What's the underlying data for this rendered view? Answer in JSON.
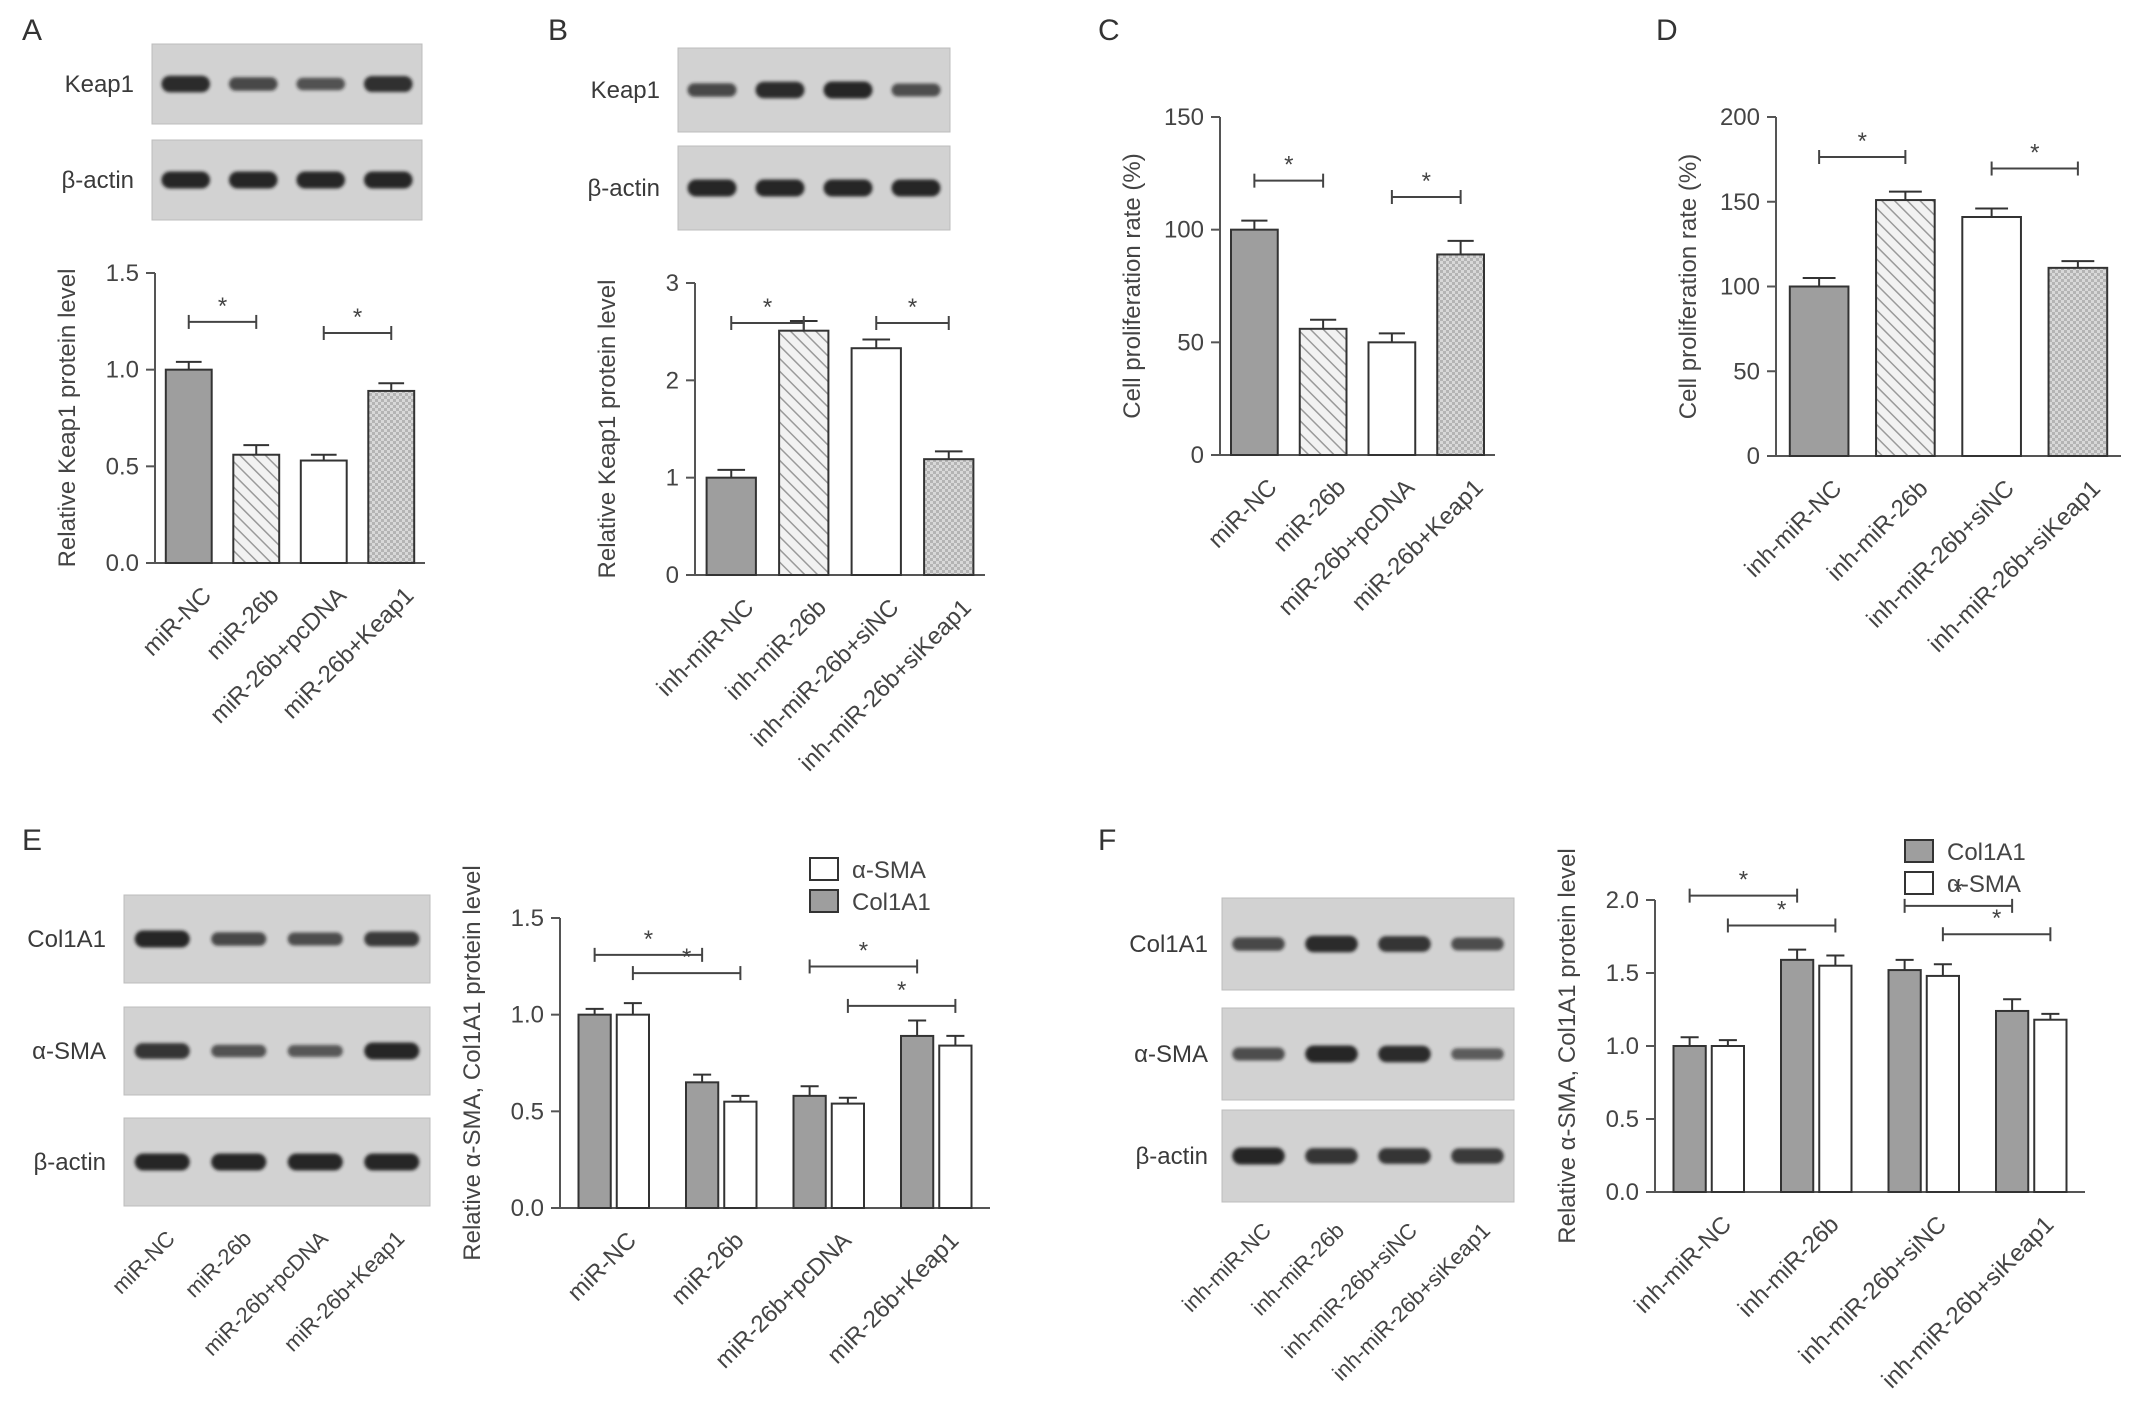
{
  "figure": {
    "panels": [
      {
        "letter": "A",
        "blot_rows": [
          "Keap1",
          "β-actin"
        ],
        "blot_lanes": 4,
        "intensities": [
          [
            0.95,
            0.6,
            0.5,
            0.9
          ],
          [
            1.0,
            1.0,
            1.0,
            1.0
          ]
        ]
      },
      {
        "letter": "B",
        "blot_rows": [
          "Keap1",
          "β-actin"
        ],
        "blot_lanes": 4,
        "intensities": [
          [
            0.6,
            0.95,
            1.0,
            0.55
          ],
          [
            1.0,
            1.0,
            1.0,
            1.0
          ]
        ]
      },
      {
        "letter": "C"
      },
      {
        "letter": "D"
      },
      {
        "letter": "E",
        "blot_rows": [
          "Col1A1",
          "α-SMA",
          "β-actin"
        ],
        "blot_lanes": 4,
        "blot_lane_labels": [
          "miR-NC",
          "miR-26b",
          "miR-26b+pcDNA",
          "miR-26b+Keap1"
        ],
        "intensities": [
          [
            1.0,
            0.6,
            0.55,
            0.75
          ],
          [
            0.85,
            0.5,
            0.45,
            1.0
          ],
          [
            1.0,
            1.0,
            1.0,
            1.0
          ]
        ]
      },
      {
        "letter": "F",
        "blot_rows": [
          "Col1A1",
          "α-SMA",
          "β-actin"
        ],
        "blot_lanes": 4,
        "blot_lane_labels": [
          "inh-miR-NC",
          "inh-miR-26b",
          "inh-miR-26b+siNC",
          "inh-miR-26b+siKeap1"
        ],
        "intensities": [
          [
            0.6,
            0.95,
            0.85,
            0.55
          ],
          [
            0.55,
            1.0,
            0.95,
            0.4
          ],
          [
            1.0,
            0.85,
            0.85,
            0.8
          ]
        ]
      }
    ],
    "significance_mark": "*"
  },
  "chart_data": [
    {
      "panel": "A",
      "type": "bar",
      "categories": [
        "miR-NC",
        "miR-26b",
        "miR-26b+pcDNA",
        "miR-26b+Keap1"
      ],
      "series": [
        {
          "values": [
            1.0,
            0.56,
            0.53,
            0.89
          ],
          "errors": [
            0.04,
            0.05,
            0.03,
            0.04
          ]
        }
      ],
      "patterns": [
        "solid",
        "hatch",
        "empty",
        "checker"
      ],
      "ylabel": "Relative Keap1 protein level",
      "ylim": [
        0,
        1.5
      ],
      "yticks": [
        "0.0",
        "0.5",
        "1.0",
        "1.5"
      ],
      "significance": [
        [
          0,
          1
        ],
        [
          2,
          3
        ]
      ]
    },
    {
      "panel": "B",
      "type": "bar",
      "categories": [
        "inh-miR-NC",
        "inh-miR-26b",
        "inh-miR-26b+siNC",
        "inh-miR-26b+siKeap1"
      ],
      "series": [
        {
          "values": [
            1.0,
            2.51,
            2.33,
            1.19
          ],
          "errors": [
            0.08,
            0.1,
            0.09,
            0.08
          ]
        }
      ],
      "patterns": [
        "solid",
        "hatch",
        "empty",
        "checker"
      ],
      "ylabel": "Relative Keap1 protein level",
      "ylim": [
        0,
        3
      ],
      "yticks": [
        "0",
        "1",
        "2",
        "3"
      ],
      "significance": [
        [
          0,
          1
        ],
        [
          2,
          3
        ]
      ]
    },
    {
      "panel": "C",
      "type": "bar",
      "categories": [
        "miR-NC",
        "miR-26b",
        "miR-26b+pcDNA",
        "miR-26b+Keap1"
      ],
      "series": [
        {
          "values": [
            100,
            56,
            50,
            89
          ],
          "errors": [
            4,
            4,
            4,
            6
          ]
        }
      ],
      "patterns": [
        "solid",
        "hatch",
        "empty",
        "checker"
      ],
      "ylabel": "Cell proliferation rate (%)",
      "ylim": [
        0,
        150
      ],
      "yticks": [
        "0",
        "50",
        "100",
        "150"
      ],
      "significance": [
        [
          0,
          1
        ],
        [
          2,
          3
        ]
      ]
    },
    {
      "panel": "D",
      "type": "bar",
      "categories": [
        "inh-miR-NC",
        "inh-miR-26b",
        "inh-miR-26b+siNC",
        "inh-miR-26b+siKeap1"
      ],
      "series": [
        {
          "values": [
            100,
            151,
            141,
            111
          ],
          "errors": [
            5,
            5,
            5,
            4
          ]
        }
      ],
      "patterns": [
        "solid",
        "hatch",
        "empty",
        "checker"
      ],
      "ylabel": "Cell proliferation rate (%)",
      "ylim": [
        0,
        200
      ],
      "yticks": [
        "0",
        "50",
        "100",
        "150",
        "200"
      ],
      "significance": [
        [
          0,
          1
        ],
        [
          2,
          3
        ]
      ]
    },
    {
      "panel": "E",
      "type": "bar",
      "categories": [
        "miR-NC",
        "miR-26b",
        "miR-26b+pcDNA",
        "miR-26b+Keap1"
      ],
      "series": [
        {
          "name": "Col1A1",
          "values": [
            1.0,
            0.65,
            0.58,
            0.89
          ],
          "errors": [
            0.03,
            0.04,
            0.05,
            0.08
          ],
          "fill": "gray"
        },
        {
          "name": "α-SMA",
          "values": [
            1.0,
            0.55,
            0.54,
            0.84
          ],
          "errors": [
            0.06,
            0.03,
            0.03,
            0.05
          ],
          "fill": "white"
        }
      ],
      "legend": [
        "α-SMA",
        "Col1A1"
      ],
      "legend_position": "top-right",
      "ylabel": "Relative α-SMA, Col1A1 protein level",
      "ylim": [
        0,
        1.5
      ],
      "yticks": [
        "0.0",
        "0.5",
        "1.0",
        "1.5"
      ],
      "significance": [
        [
          0,
          1,
          0
        ],
        [
          0,
          1,
          1
        ],
        [
          2,
          3,
          0
        ],
        [
          2,
          3,
          1
        ]
      ]
    },
    {
      "panel": "F",
      "type": "bar",
      "categories": [
        "inh-miR-NC",
        "inh-miR-26b",
        "inh-miR-26b+siNC",
        "inh-miR-26b+siKeap1"
      ],
      "series": [
        {
          "name": "Col1A1",
          "values": [
            1.0,
            1.59,
            1.52,
            1.24
          ],
          "errors": [
            0.06,
            0.07,
            0.07,
            0.08
          ],
          "fill": "gray"
        },
        {
          "name": "α-SMA",
          "values": [
            1.0,
            1.55,
            1.48,
            1.18
          ],
          "errors": [
            0.04,
            0.07,
            0.08,
            0.04
          ],
          "fill": "white"
        }
      ],
      "legend": [
        "Col1A1",
        "α-SMA"
      ],
      "legend_position": "top-right",
      "ylabel": "Relative α-SMA, Col1A1 protein level",
      "ylim": [
        0,
        2.0
      ],
      "yticks": [
        "0.0",
        "0.5",
        "1.0",
        "1.5",
        "2.0"
      ],
      "significance": [
        [
          0,
          1,
          0
        ],
        [
          0,
          1,
          1
        ],
        [
          2,
          3,
          0
        ],
        [
          2,
          3,
          1
        ]
      ]
    }
  ]
}
